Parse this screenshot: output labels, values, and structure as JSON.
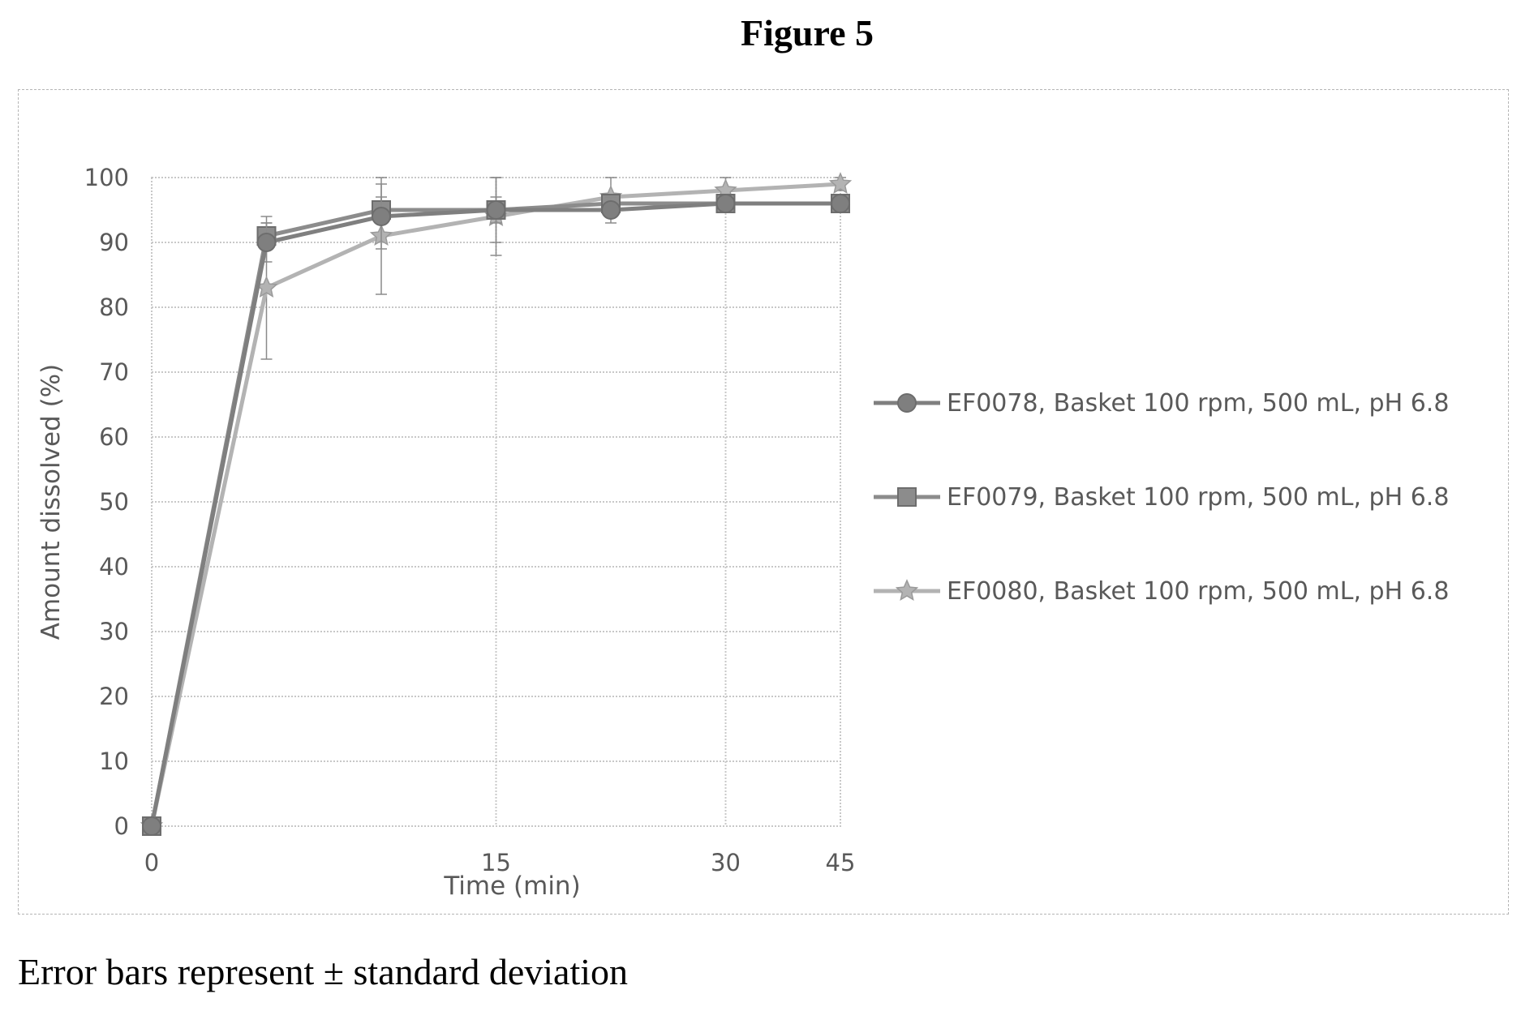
{
  "figure": {
    "title": "Figure 5",
    "caption": "Error bars represent ± standard deviation"
  },
  "chart_data": {
    "type": "line",
    "xlabel": "Time (min)",
    "ylabel": "Amount dissolved (%)",
    "ylim": [
      0,
      100
    ],
    "yticks": [
      0,
      10,
      20,
      30,
      40,
      50,
      60,
      70,
      80,
      90,
      100
    ],
    "xticks": [
      {
        "value": 0,
        "label": "0"
      },
      {
        "value": 15,
        "label": "15"
      },
      {
        "value": 30,
        "label": "30"
      },
      {
        "value": 45,
        "label": "45"
      }
    ],
    "xlim": [
      0,
      45
    ],
    "x_scale_note": "categorical",
    "x": [
      0,
      5,
      10,
      15,
      20,
      30,
      45
    ],
    "grid": true,
    "legend_position": "right",
    "series": [
      {
        "name": "EF0078, Basket 100 rpm, 500 mL, pH 6.8",
        "marker": "circle",
        "color": "#7f7f7f",
        "values": [
          0,
          90,
          94,
          95,
          95,
          96,
          96
        ],
        "errors": [
          0,
          3,
          5,
          5,
          2,
          1,
          1
        ]
      },
      {
        "name": "EF0079, Basket 100 rpm, 500 mL, pH 6.8",
        "marker": "square",
        "color": "#8c8c8c",
        "values": [
          0,
          91,
          95,
          95,
          96,
          96,
          96
        ],
        "errors": [
          0,
          2,
          2,
          2,
          1,
          1,
          1
        ]
      },
      {
        "name": "EF0080, Basket 100 rpm, 500 mL, pH 6.8",
        "marker": "star",
        "color": "#b3b3b3",
        "values": [
          0,
          83,
          91,
          94,
          97,
          98,
          99
        ],
        "errors": [
          0,
          11,
          9,
          6,
          3,
          2,
          1
        ]
      }
    ]
  }
}
